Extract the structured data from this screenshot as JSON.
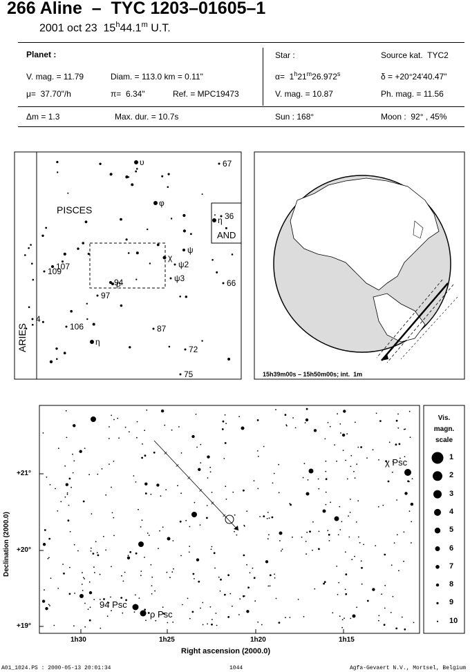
{
  "header": {
    "title": "266 Aline  –  TYC 1203–01605–1",
    "date": "2001 oct 23  15",
    "h": "h",
    "min": "44.1",
    "m": "m",
    "ut": " U.T."
  },
  "info": {
    "planet_label": "Planet :",
    "vmag": "V. mag. = 11.79",
    "diam": "Diam. = 113.0 km = 0.11\"",
    "mu": "μ=  37.70\"/h",
    "pi": "π=  6.34\"",
    "ref": "Ref. = MPC19473",
    "star_label": "Star :",
    "source": "Source kat.  TYC2",
    "alpha_pre": "α=  1",
    "alpha_h": "h",
    "alpha_min": "21",
    "alpha_m": "m",
    "alpha_sec": "26.972",
    "alpha_s": "s",
    "delta": "δ = +20°24'40.47\"",
    "star_vmag": "V. mag. = 10.87",
    "phmag": "Ph. mag. = 11.56",
    "dm": "Δm = 1.3",
    "maxdur": "Max. dur. = 10.7s",
    "sun": "Sun : 168°",
    "moon": "Moon :  92° , 45%"
  },
  "finder": {
    "constellations": [
      "PISCES",
      "ARIES",
      "AND"
    ],
    "stars": [
      {
        "label": "υ",
        "x": 197,
        "y": 235,
        "r": 3
      },
      {
        "label": "67",
        "x": 317,
        "y": 237,
        "r": 1.5
      },
      {
        "label": "φ",
        "x": 225,
        "y": 294,
        "r": 3
      },
      {
        "label": "η",
        "x": 310,
        "y": 319,
        "r": 3
      },
      {
        "label": "36",
        "x": 320,
        "y": 313,
        "r": 1.5
      },
      {
        "label": "ψ",
        "x": 266,
        "y": 362,
        "r": 2
      },
      {
        "label": "χ",
        "x": 238,
        "y": 373,
        "r": 2.5
      },
      {
        "label": "ψ2",
        "x": 253,
        "y": 383,
        "r": 1.5
      },
      {
        "label": "107",
        "x": 76,
        "y": 386,
        "r": 2
      },
      {
        "label": "109",
        "x": 64,
        "y": 393,
        "r": 1.5
      },
      {
        "label": "ψ3",
        "x": 247,
        "y": 403,
        "r": 1.5
      },
      {
        "label": "94",
        "x": 160,
        "y": 409,
        "r": 2
      },
      {
        "label": "ρ",
        "x": 163,
        "y": 411,
        "r": 2
      },
      {
        "label": "66",
        "x": 323,
        "y": 410,
        "r": 1.5
      },
      {
        "label": "97",
        "x": 141,
        "y": 428,
        "r": 1.5
      },
      {
        "label": "4",
        "x": 47,
        "y": 462,
        "r": 1.5
      },
      {
        "label": "106",
        "x": 96,
        "y": 473,
        "r": 1.5
      },
      {
        "label": "87",
        "x": 222,
        "y": 476,
        "r": 1.5
      },
      {
        "label": "η",
        "x": 133,
        "y": 495,
        "r": 3
      },
      {
        "label": "72",
        "x": 268,
        "y": 506,
        "r": 1.5
      },
      {
        "label": "75",
        "x": 261,
        "y": 542,
        "r": 1.5
      }
    ]
  },
  "globe": {
    "caption": "15h39m00s – 15h50m00s; int.  1m"
  },
  "chart_data": {
    "type": "scatter",
    "xlabel": "Right ascension (2000.0)",
    "ylabel": "Declination (2000.0)",
    "xticks": [
      "1h30",
      "1h25",
      "1h20",
      "1h15"
    ],
    "yticks": [
      "+21°",
      "+20°",
      "+19°"
    ],
    "named_stars": [
      {
        "label": "94 Psc",
        "x": 196,
        "y": 879,
        "mag": 3
      },
      {
        "label": "ρ Psc",
        "x": 207,
        "y": 888,
        "mag": 3
      },
      {
        "label": "χ Psc",
        "x": 590,
        "y": 684,
        "mag": 2
      }
    ],
    "path_start": [
      223,
      638
    ],
    "path_end": [
      345,
      768
    ],
    "target": [
      332,
      752
    ],
    "legend_title": [
      "Vis.",
      "magn.",
      "scale"
    ],
    "legend_mags": [
      "1",
      "2",
      "3",
      "4",
      "5",
      "6",
      "7",
      "8",
      "9",
      "10"
    ]
  },
  "footer": {
    "left": "A01_1024.PS : 2000-05-13 20:01:34",
    "center": "1044",
    "right": "Agfa-Gevaert N.V., Mortsel, Belgium"
  }
}
